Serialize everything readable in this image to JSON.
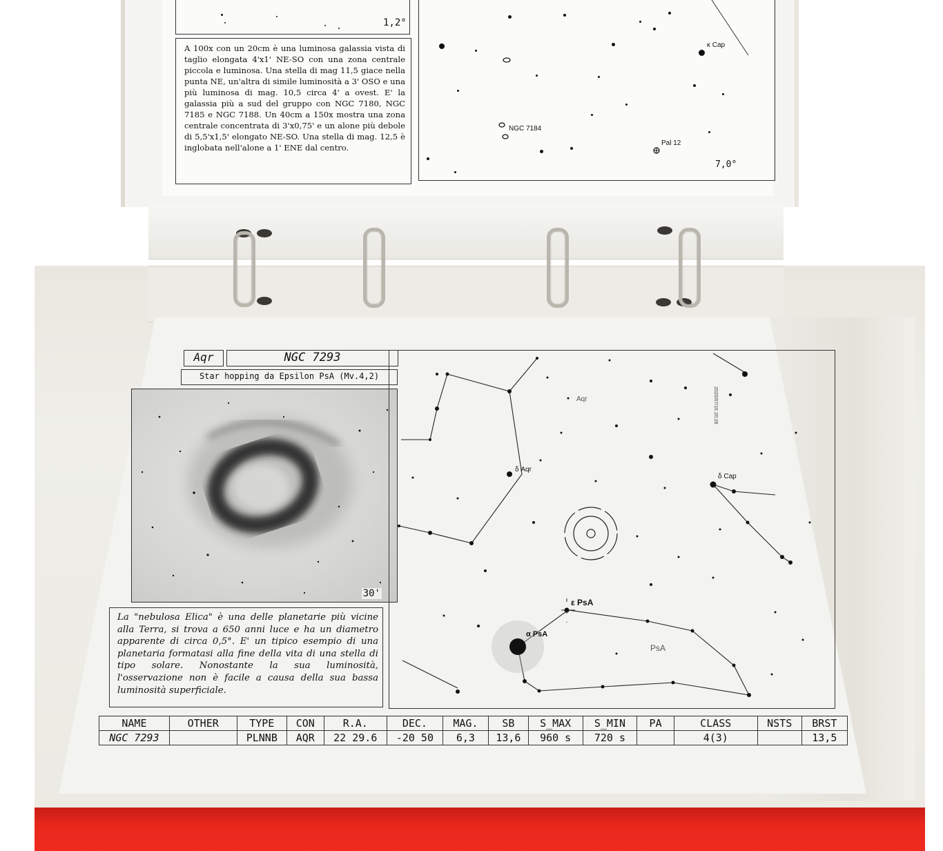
{
  "top_page": {
    "scale_left": "1,2°",
    "description": "A 100x con un 20cm è una luminosa galassia vista di taglio elongata 4'x1' NE-SO con una zona centrale piccola e luminosa. Una stella di mag 11,5 giace nella punta NE, un'altra di simile luminosità a 3' OSO e una più luminosa di mag. 10,5 circa 4' a ovest. E' la galassia più a sud del gruppo con NGC 7180, NGC 7185 e NGC 7188. Un 40cm a 150x mostra una zona centrale concentrata di 3'x0,75' e un alone più debole di 5,5'x1,5' elongato NE-SO. Una stella di mag. 12,5 è inglobata nell'alone a 1' ENE dal centro.",
    "chart_labels": {
      "star_label": "κ Cap",
      "galaxy_label": "NGC 7184",
      "cluster_label": "Pal 12",
      "scale": "7,0°"
    }
  },
  "lower_page": {
    "constellation": "Aqr",
    "object_name": "NGC 7293",
    "hopping": "Star hopping da Epsilon PsA (Mv.4,2)",
    "photo_scale": "30'",
    "description": "La \"nebulosa Elica\" è una delle planetarie più vicine alla Terra, si trova a 650 anni luce e ha un diametro apparente di circa 0,5°. E' un tipico esempio di una planetaria formatasi alla fine della vita di una stella di tipo solare. Nonostante la sua luminosità, l'osservazione non è facile a causa della sua bassa luminosità superficiale.",
    "chart_labels": {
      "aqr": "Aqr",
      "delta_aqr": "δ Aqr",
      "delta_cap": "δ Cap",
      "epsilon_psa": "ε PsA",
      "alpha_psa": "α PsA",
      "psa": "PsA",
      "margin_code": "2020/07/16 20:28"
    },
    "table": {
      "headers": [
        "NAME",
        "OTHER",
        "TYPE",
        "CON",
        "R.A.",
        "DEC.",
        "MAG.",
        "SB",
        "S_MAX",
        "S_MIN",
        "PA",
        "CLASS",
        "NSTS",
        "BRST"
      ],
      "row": [
        "NGC 7293",
        "",
        "PLNNB",
        "AQR",
        "22 29.6",
        "-20 50",
        "6,3",
        "13,6",
        "960 s",
        "720 s",
        "",
        "4(3)",
        "",
        "13,5"
      ]
    }
  }
}
